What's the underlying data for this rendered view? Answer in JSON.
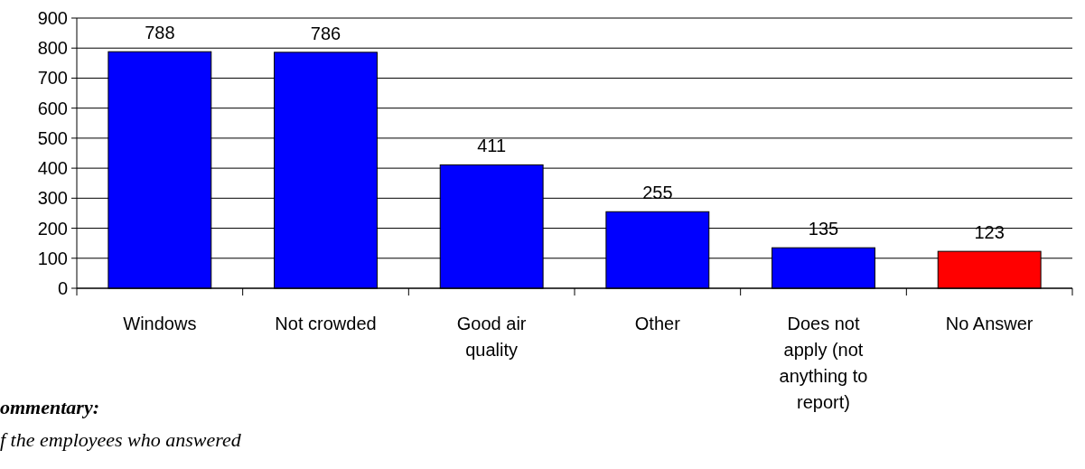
{
  "chart_data": {
    "type": "bar",
    "categories": [
      "Windows",
      "Not crowded",
      "Good air quality",
      "Other",
      "Does not apply (not anything to report)",
      "No Answer"
    ],
    "values": [
      788,
      786,
      411,
      255,
      135,
      123
    ],
    "colors": [
      "#0000ff",
      "#0000ff",
      "#0000ff",
      "#0000ff",
      "#0000ff",
      "#ff0000"
    ],
    "ylim": [
      0,
      900
    ],
    "yticks": [
      0,
      100,
      200,
      300,
      400,
      500,
      600,
      700,
      800,
      900
    ],
    "grid": "y",
    "data_labels": true,
    "annotations": [
      "ommentary:",
      "f the employees who answered"
    ]
  }
}
